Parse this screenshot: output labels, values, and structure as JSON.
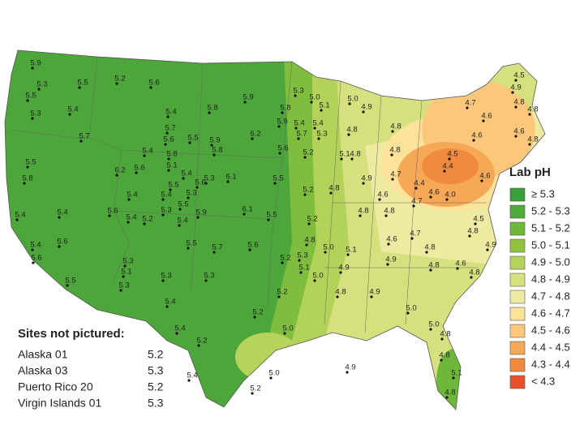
{
  "legend": {
    "title": "Lab pH",
    "items": [
      {
        "label": "≥ 5.3",
        "color": "#3a9e3a"
      },
      {
        "label": "5.2 - 5.3",
        "color": "#4fab3a"
      },
      {
        "label": "5.1 - 5.2",
        "color": "#6db83b"
      },
      {
        "label": "5.0 - 5.1",
        "color": "#90c43f"
      },
      {
        "label": "4.9 - 5.0",
        "color": "#b6d35c"
      },
      {
        "label": "4.8 - 4.9",
        "color": "#d6e07f"
      },
      {
        "label": "4.7 - 4.8",
        "color": "#efeaa2"
      },
      {
        "label": "4.6 - 4.7",
        "color": "#fde39a"
      },
      {
        "label": "4.5 - 4.6",
        "color": "#fbc77a"
      },
      {
        "label": "4.4 - 4.5",
        "color": "#f7a857"
      },
      {
        "label": "4.3 - 4.4",
        "color": "#f08a3e"
      },
      {
        "label": "< 4.3",
        "color": "#e8502a"
      }
    ]
  },
  "sites_not_pictured": {
    "title": "Sites not pictured:",
    "rows": [
      [
        "Alaska 01",
        "5.2"
      ],
      [
        "Alaska 03",
        "5.3"
      ],
      [
        "Puerto Rico 20",
        "5.2"
      ],
      [
        "Virgin Islands 01",
        "5.3"
      ]
    ]
  },
  "site_labels": [
    "5.9",
    "5.3",
    "5.5",
    "5.2",
    "5.6",
    "5.5",
    "5.3",
    "5.4",
    "5.4",
    "5.8",
    "5.9",
    "5.3",
    "5.0",
    "5.0",
    "4.9",
    "5.1",
    "5.8",
    "5.9",
    "5.4",
    "5.4",
    "5.3",
    "5.7",
    "5.6",
    "5.7",
    "5.5",
    "5.9",
    "5.8",
    "6.2",
    "5.7",
    "4.8",
    "4.8",
    "5.6",
    "5.2",
    "5.1",
    "5.5",
    "5.4",
    "5.8",
    "5.1",
    "6.2",
    "5.6",
    "5.4",
    "5.3",
    "5.8",
    "6.1",
    "5.5",
    "4.8",
    "4.8",
    "5.2",
    "4.9",
    "4.8",
    "5.4",
    "5.4",
    "5.5",
    "5.6",
    "5.3",
    "5.5",
    "5.9",
    "5.6",
    "5.3",
    "5.4",
    "5.2",
    "5.4",
    "6.1",
    "5.5",
    "5.2",
    "4.8",
    "5.4",
    "5.4",
    "5.6",
    "5.4",
    "5.6",
    "5.5",
    "5.7",
    "5.6",
    "4.8",
    "5.0",
    "5.1",
    "5.2",
    "5.3",
    "5.1",
    "5.0",
    "4.9",
    "4.9",
    "5.3",
    "5.1",
    "5.3",
    "5.5",
    "5.3",
    "5.3",
    "5.4",
    "5.4",
    "5.2",
    "4.8",
    "4.9",
    "5.0",
    "5.2",
    "5.0",
    "5.2",
    "5.0",
    "4.9",
    "5.4",
    "5.2",
    "4.8",
    "5.1",
    "4.5",
    "4.9",
    "4.8",
    "4.7",
    "4.8",
    "4.6",
    "4.6",
    "4.8",
    "4.6",
    "4.5",
    "4.4",
    "4.6",
    "4.4",
    "4.6",
    "4.0",
    "4.7",
    "4.7",
    "4.6",
    "4.8",
    "4.7",
    "4.8",
    "4.6",
    "4.8",
    "4.5",
    "4.8",
    "4.6",
    "5.0",
    "4.8",
    "4.8",
    "4.8",
    "4.9"
  ]
}
